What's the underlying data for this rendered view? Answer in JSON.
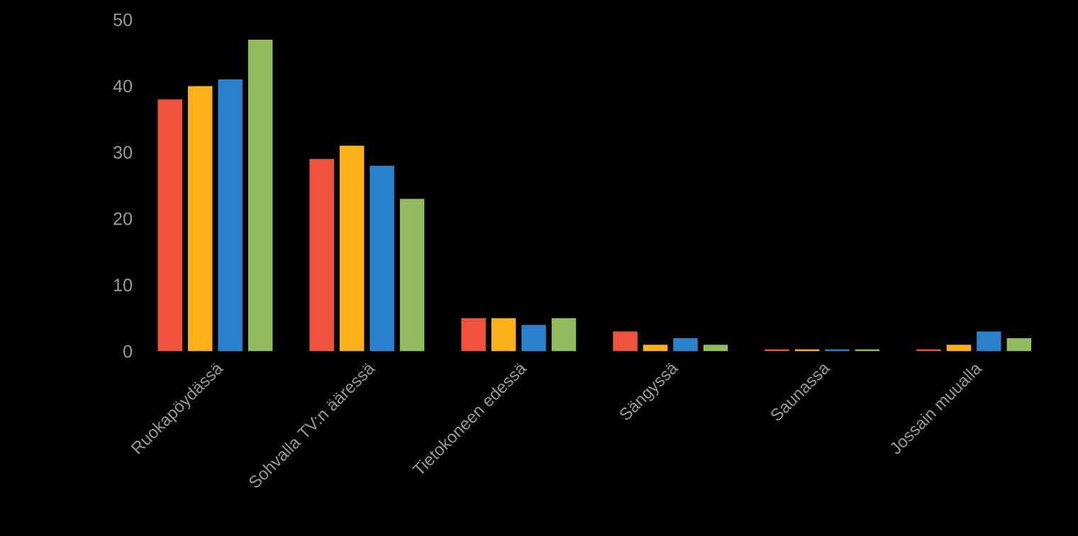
{
  "chart_data": {
    "type": "bar",
    "categories": [
      "Ruokapöydässä",
      "Sohvalla TV:n ääressä",
      "Tietokoneen edessä",
      "Sängyssä",
      "Saunassa",
      "Jossain muualla"
    ],
    "series": [
      {
        "color": "#f0523d",
        "values": [
          38,
          29,
          5,
          3,
          0.3,
          0.3
        ]
      },
      {
        "color": "#fbb117",
        "values": [
          40,
          31,
          5,
          1,
          0.3,
          1
        ]
      },
      {
        "color": "#2a82cc",
        "values": [
          41,
          28,
          4,
          2,
          0.3,
          3
        ]
      },
      {
        "color": "#92bb5e",
        "values": [
          47,
          23,
          5,
          1,
          0.3,
          2
        ]
      }
    ],
    "ylim": [
      0,
      50
    ],
    "yticks": [
      0,
      10,
      20,
      30,
      40,
      50
    ],
    "grid": false
  }
}
